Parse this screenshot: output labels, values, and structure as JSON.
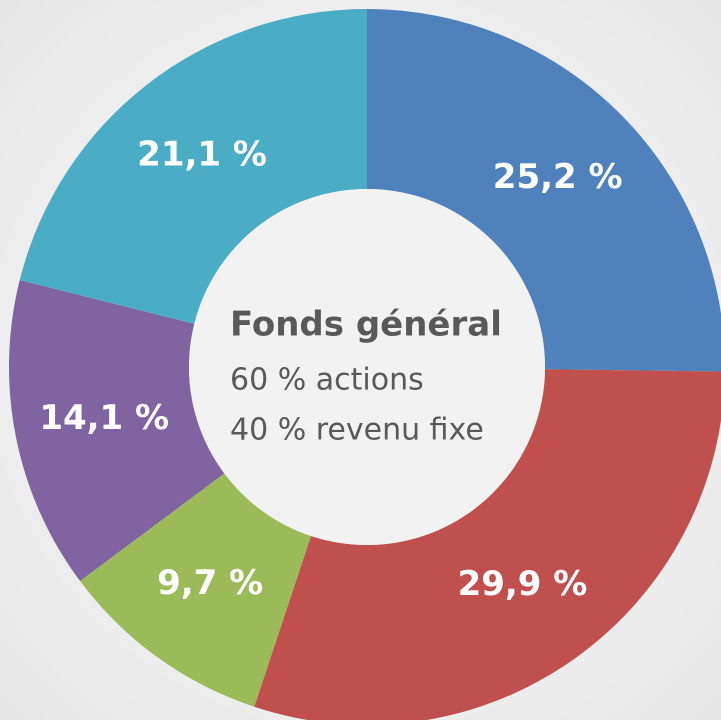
{
  "chart_data": {
    "type": "donut",
    "values": [
      25.2,
      29.9,
      9.7,
      14.1,
      21.1
    ],
    "value_labels": [
      "25,2 %",
      "29,9 %",
      "9,7 %",
      "14,1 %",
      "21,1 %"
    ],
    "colors": [
      "#4f81bd",
      "#c0504d",
      "#9bbb59",
      "#8064a2",
      "#4bacc6"
    ],
    "center_title": "Fonds général",
    "center_lines": [
      "60 % actions",
      "40 % revenu fixe"
    ]
  }
}
